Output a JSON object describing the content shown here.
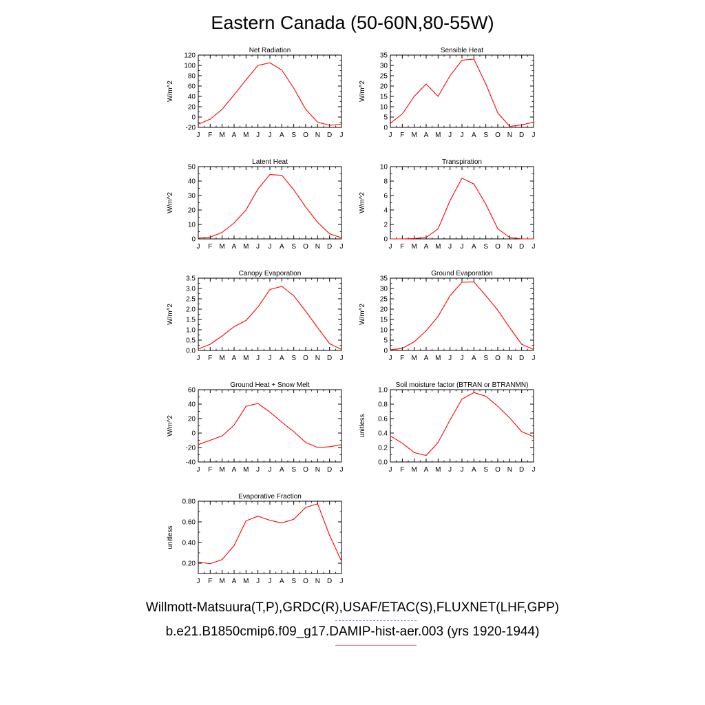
{
  "title": "Eastern Canada (50-60N,80-55W)",
  "legend": {
    "obs_label": "Willmott-Matsuura(T,P),GRDC(R),USAF/ETAC(S),FLUXNET(LHF,GPP)",
    "model_label": "b.e21.B1850cmip6.f09_g17.DAMIP-hist-aer.003 (yrs 1920-1944)",
    "obs_color": "#7b7bff",
    "model_color": "#ff8080"
  },
  "months": [
    "J",
    "F",
    "M",
    "A",
    "M",
    "J",
    "J",
    "A",
    "S",
    "O",
    "N",
    "D",
    "J"
  ],
  "chart_data": [
    {
      "type": "line",
      "title": "Net Radiation",
      "ylabel": "W/m^2",
      "ylim": [
        -20,
        120
      ],
      "yticks": [
        -20,
        0,
        20,
        40,
        60,
        80,
        100,
        120
      ],
      "ytick_labels": [
        "-20",
        "0",
        "20",
        "40",
        "60",
        "80",
        "100",
        "120"
      ],
      "categories": [
        "J",
        "F",
        "M",
        "A",
        "M",
        "J",
        "J",
        "A",
        "S",
        "O",
        "N",
        "D",
        "J"
      ],
      "series": [
        {
          "values": [
            -14,
            -4,
            15,
            43,
            72,
            100,
            105,
            91,
            56,
            15,
            -10,
            -16,
            -14
          ],
          "color": "#ff0000"
        }
      ]
    },
    {
      "type": "line",
      "title": "Sensible Heat",
      "ylabel": "W/m^2",
      "ylim": [
        0,
        35
      ],
      "yticks": [
        0,
        5,
        10,
        15,
        20,
        25,
        30,
        35
      ],
      "ytick_labels": [
        "0",
        "5",
        "10",
        "15",
        "20",
        "25",
        "30",
        "35"
      ],
      "categories": [
        "J",
        "F",
        "M",
        "A",
        "M",
        "J",
        "J",
        "A",
        "S",
        "O",
        "N",
        "D",
        "J"
      ],
      "series": [
        {
          "values": [
            2,
            6.5,
            15,
            21,
            15,
            25,
            32.5,
            33,
            21,
            7,
            0.5,
            1.2,
            2.5
          ],
          "color": "#ff0000"
        }
      ]
    },
    {
      "type": "line",
      "title": "Latent Heat",
      "ylabel": "W/m^2",
      "ylim": [
        0,
        50
      ],
      "yticks": [
        0,
        10,
        20,
        30,
        40,
        50
      ],
      "ytick_labels": [
        "0",
        "10",
        "20",
        "30",
        "40",
        "50"
      ],
      "categories": [
        "J",
        "F",
        "M",
        "A",
        "M",
        "J",
        "J",
        "A",
        "S",
        "O",
        "N",
        "D",
        "J"
      ],
      "series": [
        {
          "values": [
            0.5,
            1.2,
            4.5,
            11,
            20,
            34.5,
            44.5,
            44,
            34,
            22,
            11.5,
            3.5,
            0.8
          ],
          "color": "#ff0000"
        }
      ]
    },
    {
      "type": "line",
      "title": "Transpiration",
      "ylabel": "W/m^2",
      "ylim": [
        0,
        10
      ],
      "yticks": [
        0,
        2,
        4,
        6,
        8,
        10
      ],
      "ytick_labels": [
        "0",
        "2",
        "4",
        "6",
        "8",
        "10"
      ],
      "categories": [
        "J",
        "F",
        "M",
        "A",
        "M",
        "J",
        "J",
        "A",
        "S",
        "O",
        "N",
        "D",
        "J"
      ],
      "series": [
        {
          "values": [
            0,
            0,
            0.05,
            0.2,
            1.4,
            5.3,
            8.4,
            7.6,
            4.8,
            1.4,
            0.2,
            0,
            0
          ],
          "color": "#ff0000"
        }
      ]
    },
    {
      "type": "line",
      "title": "Canopy Evaporation",
      "ylabel": "W/m^2",
      "ylim": [
        0,
        3.5
      ],
      "yticks": [
        0,
        0.5,
        1,
        1.5,
        2,
        2.5,
        3,
        3.5
      ],
      "ytick_labels": [
        "0.0",
        "0.5",
        "1.0",
        "1.5",
        "2.0",
        "2.5",
        "3.0",
        "3.5"
      ],
      "categories": [
        "J",
        "F",
        "M",
        "A",
        "M",
        "J",
        "J",
        "A",
        "S",
        "O",
        "N",
        "D",
        "J"
      ],
      "series": [
        {
          "values": [
            0.07,
            0.3,
            0.7,
            1.15,
            1.45,
            2.1,
            2.95,
            3.1,
            2.65,
            1.9,
            1.1,
            0.33,
            0.05
          ],
          "color": "#ff0000"
        }
      ]
    },
    {
      "type": "line",
      "title": "Ground Evaporation",
      "ylabel": "W/m^2",
      "ylim": [
        0,
        35
      ],
      "yticks": [
        0,
        5,
        10,
        15,
        20,
        25,
        30,
        35
      ],
      "ytick_labels": [
        "0",
        "5",
        "10",
        "15",
        "20",
        "25",
        "30",
        "35"
      ],
      "categories": [
        "J",
        "F",
        "M",
        "A",
        "M",
        "J",
        "J",
        "A",
        "S",
        "O",
        "N",
        "D",
        "J"
      ],
      "series": [
        {
          "values": [
            0.3,
            1,
            4.2,
            9.5,
            16.5,
            26.5,
            33,
            33.2,
            26.5,
            19.5,
            11,
            3,
            0.5
          ],
          "color": "#ff0000"
        }
      ]
    },
    {
      "type": "line",
      "title": "Ground Heat + Snow Melt",
      "ylabel": "W/m^2",
      "ylim": [
        -40,
        60
      ],
      "yticks": [
        -40,
        -20,
        0,
        20,
        40,
        60
      ],
      "ytick_labels": [
        "-40",
        "-20",
        "0",
        "20",
        "40",
        "60"
      ],
      "categories": [
        "J",
        "F",
        "M",
        "A",
        "M",
        "J",
        "J",
        "A",
        "S",
        "O",
        "N",
        "D",
        "J"
      ],
      "series": [
        {
          "values": [
            -16,
            -10,
            -4,
            11,
            37,
            41,
            29,
            15,
            2,
            -13,
            -20,
            -19,
            -16
          ],
          "color": "#ff0000"
        }
      ]
    },
    {
      "type": "line",
      "title": "Soil moisture factor (BTRAN or BTRANMN)",
      "ylabel": "unitless",
      "ylim": [
        0,
        1
      ],
      "yticks": [
        0,
        0.2,
        0.4,
        0.6,
        0.8,
        1
      ],
      "ytick_labels": [
        "0.0",
        "0.2",
        "0.4",
        "0.6",
        "0.8",
        "1.0"
      ],
      "categories": [
        "J",
        "F",
        "M",
        "A",
        "M",
        "J",
        "J",
        "A",
        "S",
        "O",
        "N",
        "D",
        "J"
      ],
      "series": [
        {
          "values": [
            0.36,
            0.26,
            0.13,
            0.09,
            0.27,
            0.58,
            0.87,
            0.96,
            0.91,
            0.77,
            0.61,
            0.42,
            0.35
          ],
          "color": "#ff0000"
        }
      ]
    },
    {
      "type": "line",
      "title": "Evaporative Fraction",
      "ylabel": "unitless",
      "ylim": [
        0.1,
        0.8
      ],
      "yticks": [
        0.2,
        0.4,
        0.6,
        0.8
      ],
      "ytick_labels": [
        "0.20",
        "0.40",
        "0.60",
        "0.80"
      ],
      "categories": [
        "J",
        "F",
        "M",
        "A",
        "M",
        "J",
        "J",
        "A",
        "S",
        "O",
        "N",
        "D",
        "J"
      ],
      "series": [
        {
          "values": [
            0.21,
            0.195,
            0.235,
            0.37,
            0.61,
            0.655,
            0.615,
            0.59,
            0.625,
            0.74,
            0.775,
            0.47,
            0.22
          ],
          "color": "#ff0000"
        }
      ]
    }
  ]
}
